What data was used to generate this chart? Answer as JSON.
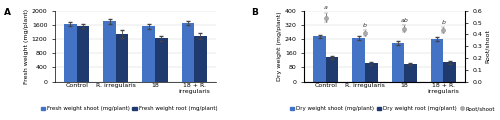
{
  "categories": [
    "Control",
    "R. irregularis",
    "18",
    "18 + R.\nirregularis"
  ],
  "panel_A": {
    "shoot_means": [
      1620,
      1700,
      1560,
      1650
    ],
    "root_means": [
      1570,
      1340,
      1230,
      1290
    ],
    "shoot_se": [
      50,
      80,
      60,
      60
    ],
    "root_se": [
      60,
      120,
      70,
      90
    ],
    "ylabel": "Fresh weight (mg/plant)",
    "ylim": [
      0,
      2000
    ],
    "yticks": [
      0,
      400,
      800,
      1200,
      1600,
      2000
    ],
    "shoot_color": "#4472C4",
    "root_color": "#1F3A6E",
    "label": "A"
  },
  "panel_B": {
    "shoot_means": [
      255,
      248,
      218,
      242
    ],
    "root_means": [
      138,
      103,
      98,
      108
    ],
    "shoot_se": [
      9,
      11,
      9,
      11
    ],
    "root_se": [
      9,
      7,
      7,
      7
    ],
    "ratio_means": [
      0.54,
      0.413,
      0.449,
      0.438
    ],
    "ratio_se": [
      0.038,
      0.028,
      0.03,
      0.028
    ],
    "ratio_letters": [
      "a",
      "b",
      "ab",
      "b"
    ],
    "ratio_letter_offsets": [
      0.065,
      0.038,
      0.048,
      0.038
    ],
    "ylabel": "Dry weight (mg/plant)",
    "ylabel2": "Root/shoot",
    "ylim": [
      0,
      400
    ],
    "yticks": [
      0,
      80,
      160,
      240,
      320,
      400
    ],
    "ylim2": [
      0,
      0.6
    ],
    "yticks2": [
      0,
      0.1,
      0.2,
      0.3,
      0.4,
      0.5,
      0.6
    ],
    "shoot_color": "#4472C4",
    "root_color": "#1F3A6E",
    "ratio_color": "#AAAAAA",
    "label": "B"
  },
  "legend_A": {
    "shoot_label": "Fresh weight shoot (mg/plant)",
    "root_label": "Fresh weight root (mg/plant)"
  },
  "legend_B": {
    "shoot_label": "Dry weight shoot (mg/plant)",
    "root_label": "Dry weight root (mg/plant)",
    "ratio_label": "Root/shoot"
  },
  "bar_width": 0.32,
  "fontsize_tick": 4.5,
  "fontsize_label": 4.5,
  "fontsize_legend": 4.0,
  "fontsize_panel": 6.5
}
